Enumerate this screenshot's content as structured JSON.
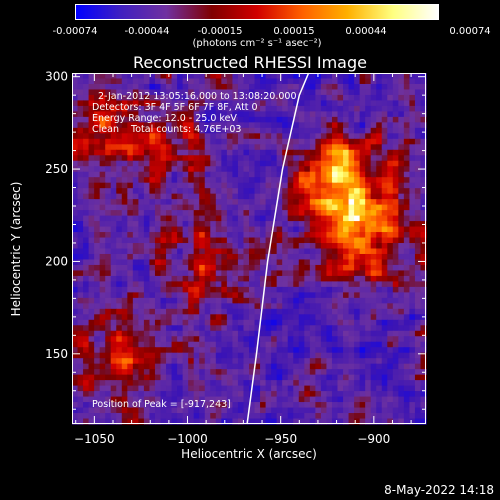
{
  "colorbar": {
    "ticks": [
      "-0.00074",
      "-0.00044",
      "-0.00015",
      "0.00015",
      "0.00044",
      "0.00074"
    ],
    "label": "(photons cm⁻² s⁻¹ asec⁻²)",
    "colors": [
      "#0000ff",
      "#4020c0",
      "#7030a0",
      "#800000",
      "#d00000",
      "#ff6000",
      "#ffb000",
      "#ffff80",
      "#ffffff"
    ]
  },
  "chart_data": {
    "type": "heatmap",
    "title": "Reconstructed RHESSI Image",
    "xlabel": "Heliocentric X (arcsec)",
    "ylabel": "Heliocentric Y (arcsec)",
    "xlim": [
      -1062,
      -872
    ],
    "ylim": [
      112,
      302
    ],
    "x_ticks": [
      -1050,
      -1000,
      -950,
      -900
    ],
    "x_tick_labels": [
      "−1050",
      "−1000",
      "−950",
      "−900"
    ],
    "y_ticks": [
      150,
      200,
      250,
      300
    ],
    "y_tick_labels": [
      "150",
      "200",
      "250",
      "300"
    ],
    "colorbar_range": [
      -0.00074,
      0.00074
    ],
    "annotations": [
      "2-Jan-2012 13:05:16.000 to 13:08:20.000",
      "Detectors: 3F 4F 5F 6F 7F 8F, Att 0",
      "Energy Range: 12.0 - 25.0 keV",
      "Clean    Total counts: 4.76E+03"
    ],
    "peak_label": "Position of Peak = [-917,243]",
    "limb_curve": [
      [
        -968,
        112
      ],
      [
        -963,
        150
      ],
      [
        -957,
        200
      ],
      [
        -949,
        250
      ],
      [
        -940,
        290
      ],
      [
        -935,
        302
      ]
    ],
    "hot_sources": [
      {
        "x": -918,
        "y": 243,
        "intensity": 1.0
      },
      {
        "x": -905,
        "y": 212,
        "intensity": 0.7
      },
      {
        "x": -1035,
        "y": 150,
        "intensity": 0.6
      },
      {
        "x": -1045,
        "y": 272,
        "intensity": 0.5
      },
      {
        "x": -990,
        "y": 200,
        "intensity": 0.45
      },
      {
        "x": -1010,
        "y": 255,
        "intensity": 0.4
      }
    ]
  },
  "footer": {
    "timestamp": "8-May-2022 14:18"
  }
}
